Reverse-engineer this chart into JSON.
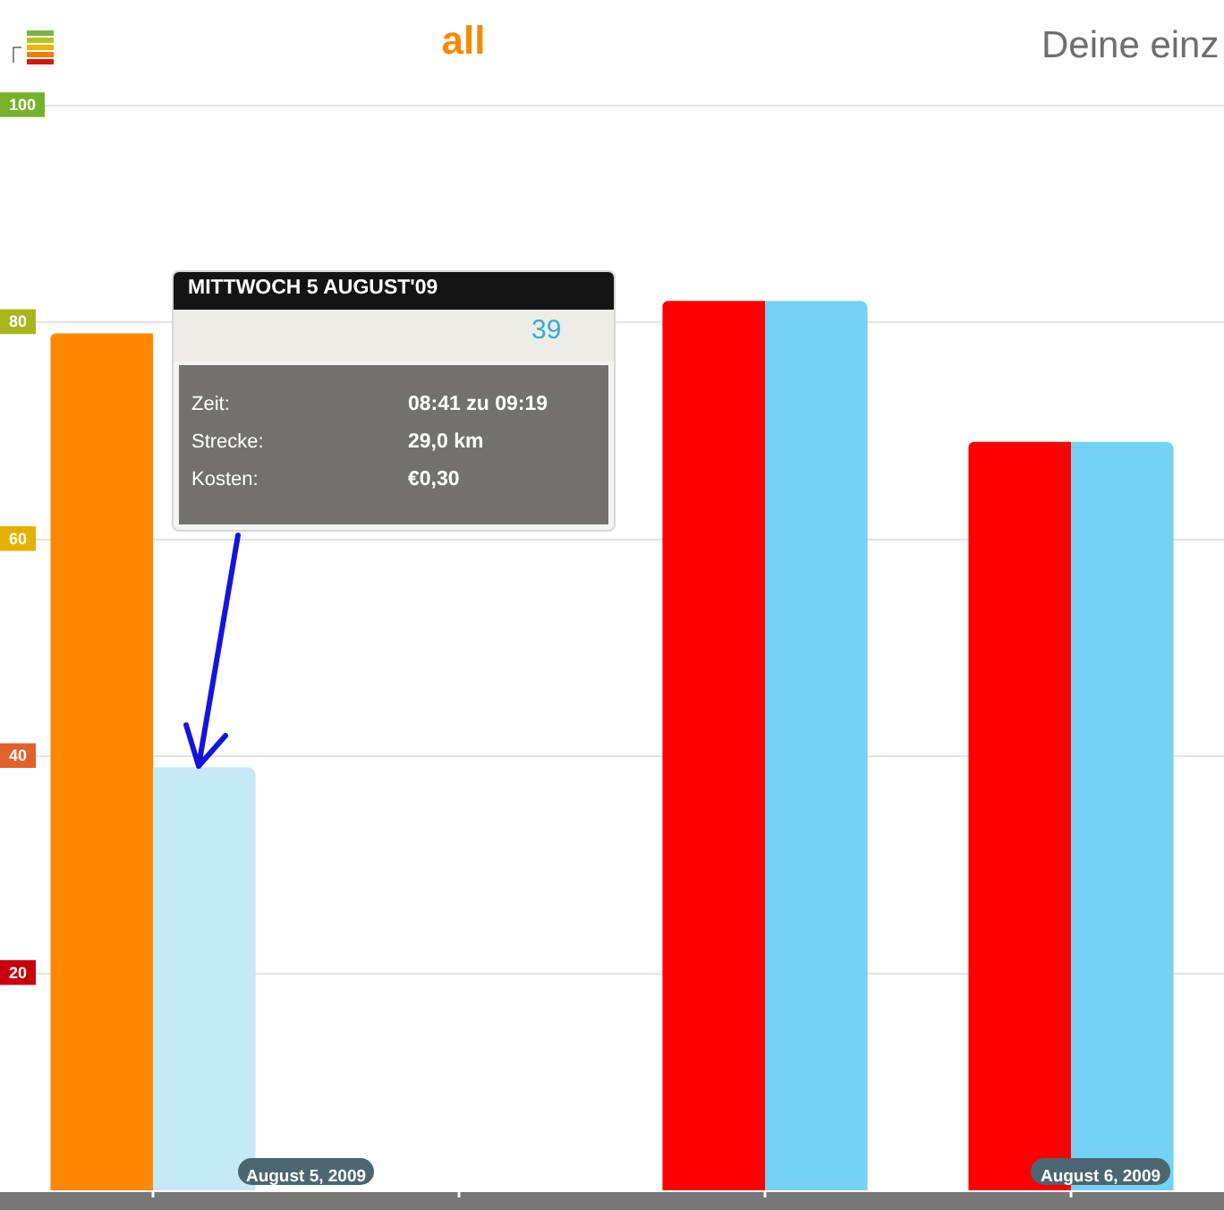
{
  "chart_data": {
    "type": "bar",
    "title": "all",
    "subtitle": "Deine einz",
    "categories": [
      null,
      null,
      null,
      null
    ],
    "series": [
      {
        "colors": [
          "#ff8800",
          "#ff8800",
          "#ff0000",
          "#ff0000"
        ],
        "values": [
          79,
          null,
          82,
          69
        ]
      },
      {
        "colors": [
          "#c6e9f7",
          "#c6e9f7",
          "#74d2f7",
          "#74d2f7"
        ],
        "values": [
          39,
          null,
          82,
          69
        ]
      }
    ],
    "ylim": [
      0,
      100
    ],
    "yticks": [
      20,
      40,
      60,
      80,
      100
    ],
    "grid": "y",
    "tick_labels": "y",
    "annotations": [
      "MITTWOCH 5 AUGUST'09",
      "39",
      "Zeit:",
      "08:41 zu 09:19",
      "Strecke:",
      "29,0 km",
      "Kosten:",
      "€0,30",
      "August 5, 2009",
      "August 6, 2009"
    ]
  }
}
